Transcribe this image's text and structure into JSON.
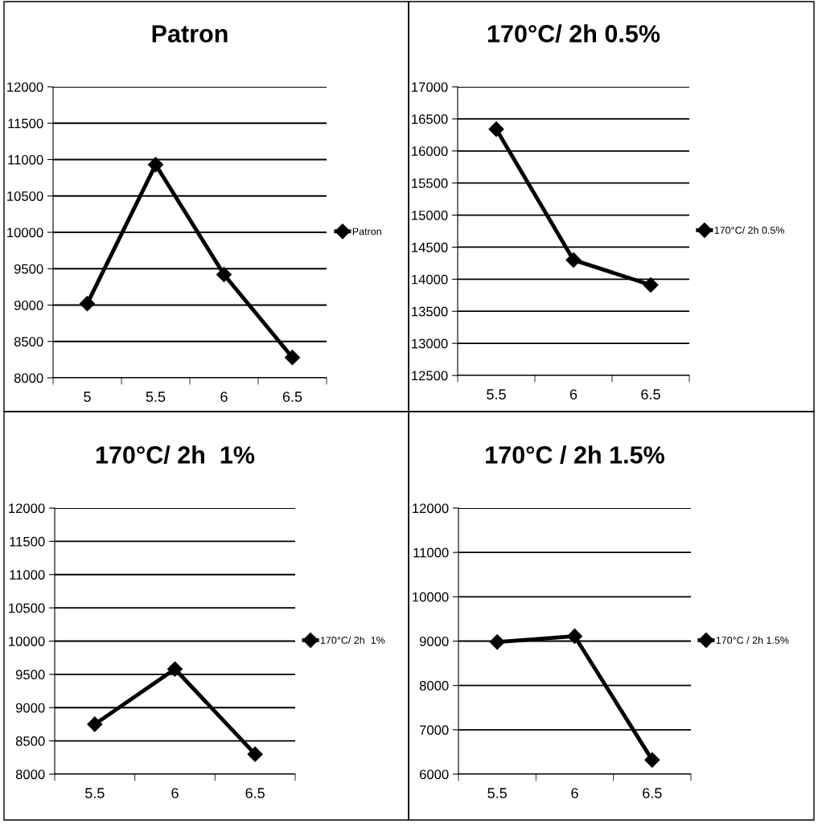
{
  "chart_data": [
    {
      "type": "line",
      "title": "Patron",
      "categories": [
        "5",
        "5.5",
        "6",
        "6.5"
      ],
      "series": [
        {
          "name": "Patron",
          "color": "#000000",
          "values": [
            9020,
            10930,
            9420,
            8280
          ]
        }
      ],
      "ylim": [
        8000,
        12000
      ],
      "yticks": [
        8000,
        8500,
        9000,
        9500,
        10000,
        10500,
        11000,
        11500,
        12000
      ],
      "grid": "y",
      "legend": "right",
      "marker": "diamond",
      "line_style": "solid"
    },
    {
      "type": "line",
      "title": "170°C/ 2h 0.5%",
      "categories": [
        "5.5",
        "6",
        "6.5"
      ],
      "series": [
        {
          "name": "170°C/ 2h 0.5%",
          "color": "#000000",
          "values": [
            16340,
            14300,
            13910
          ]
        }
      ],
      "ylim": [
        12500,
        17000
      ],
      "yticks": [
        12500,
        13000,
        13500,
        14000,
        14500,
        15000,
        15500,
        16000,
        16500,
        17000
      ],
      "grid": "y",
      "legend": "right",
      "marker": "diamond",
      "line_style": "solid"
    },
    {
      "type": "line",
      "title": "170°C/ 2h  1%",
      "categories": [
        "5.5",
        "6",
        "6.5"
      ],
      "series": [
        {
          "name": "170°C/ 2h  1%",
          "color": "#000000",
          "values": [
            8750,
            9580,
            8300
          ]
        }
      ],
      "ylim": [
        8000,
        12000
      ],
      "yticks": [
        8000,
        8500,
        9000,
        9500,
        10000,
        10500,
        11000,
        11500,
        12000
      ],
      "grid": "y",
      "legend": "right",
      "marker": "diamond",
      "line_style": "solid"
    },
    {
      "type": "line",
      "title": "170°C / 2h 1.5%",
      "categories": [
        "5.5",
        "6",
        "6.5"
      ],
      "series": [
        {
          "name": "170°C / 2h 1.5%",
          "color": "#000000",
          "values": [
            8980,
            9110,
            6320
          ]
        }
      ],
      "ylim": [
        6000,
        12000
      ],
      "yticks": [
        6000,
        7000,
        8000,
        9000,
        10000,
        11000,
        12000
      ],
      "grid": "y",
      "legend": "right",
      "marker": "diamond",
      "line_style": "solid"
    }
  ]
}
